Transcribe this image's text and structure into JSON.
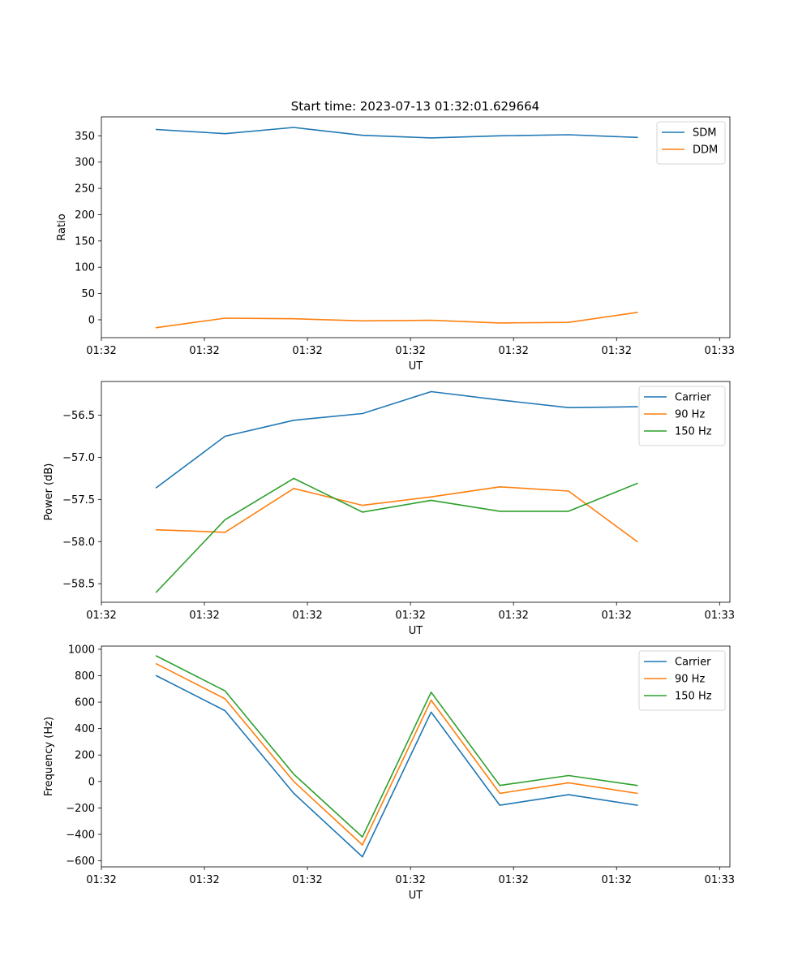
{
  "figure_title": "Start time: 2023-07-13 01:32:01.629664",
  "colors": {
    "blue": "#1f77b4",
    "orange": "#ff7f0e",
    "green": "#2ca02c"
  },
  "chart_data": [
    {
      "type": "line",
      "title": "Start time: 2023-07-13 01:32:01.629664",
      "xlabel": "UT",
      "ylabel": "Ratio",
      "x": [
        1,
        2,
        3,
        4,
        5,
        6,
        7,
        8
      ],
      "xlim": [
        0.2,
        9.35
      ],
      "x_ticks": [
        0.2,
        1.7,
        3.2,
        4.7,
        6.2,
        7.7,
        9.2
      ],
      "x_tick_labels": [
        "01:32",
        "01:32",
        "01:32",
        "01:32",
        "01:32",
        "01:32",
        "01:33"
      ],
      "ylim": [
        -34.0,
        386.0
      ],
      "y_ticks": [
        0,
        50,
        100,
        150,
        200,
        250,
        300,
        350
      ],
      "y_tick_labels": [
        "0",
        "50",
        "100",
        "150",
        "200",
        "250",
        "300",
        "350"
      ],
      "legend_position": "top-right",
      "series": [
        {
          "name": "SDM",
          "color": "#1f77b4",
          "values": [
            362,
            354,
            366,
            351,
            346,
            350,
            352,
            347
          ]
        },
        {
          "name": "DDM",
          "color": "#ff7f0e",
          "values": [
            -15,
            3,
            2,
            -2,
            -1,
            -6,
            -5,
            14
          ]
        }
      ]
    },
    {
      "type": "line",
      "xlabel": "UT",
      "ylabel": "Power (dB)",
      "x": [
        1,
        2,
        3,
        4,
        5,
        6,
        7,
        8
      ],
      "xlim": [
        0.2,
        9.35
      ],
      "x_ticks": [
        0.2,
        1.7,
        3.2,
        4.7,
        6.2,
        7.7,
        9.2
      ],
      "x_tick_labels": [
        "01:32",
        "01:32",
        "01:32",
        "01:32",
        "01:32",
        "01:32",
        "01:33"
      ],
      "ylim": [
        -58.72,
        -56.1
      ],
      "y_ticks": [
        -58.5,
        -58.0,
        -57.5,
        -57.0,
        -56.5
      ],
      "y_tick_labels": [
        "−58.5",
        "−58.0",
        "−57.5",
        "−57.0",
        "−56.5"
      ],
      "legend_position": "top-right",
      "series": [
        {
          "name": "Carrier",
          "color": "#1f77b4",
          "values": [
            -57.36,
            -56.75,
            -56.56,
            -56.48,
            -56.22,
            -56.32,
            -56.41,
            -56.4
          ]
        },
        {
          "name": "90 Hz",
          "color": "#ff7f0e",
          "values": [
            -57.86,
            -57.89,
            -57.37,
            -57.57,
            -57.47,
            -57.35,
            -57.4,
            -58.0
          ]
        },
        {
          "name": "150 Hz",
          "color": "#2ca02c",
          "values": [
            -58.6,
            -57.74,
            -57.25,
            -57.65,
            -57.51,
            -57.64,
            -57.64,
            -57.31
          ]
        }
      ]
    },
    {
      "type": "line",
      "xlabel": "UT",
      "ylabel": "Frequency (Hz)",
      "x": [
        1,
        2,
        3,
        4,
        5,
        6,
        7,
        8
      ],
      "xlim": [
        0.2,
        9.35
      ],
      "x_ticks": [
        0.2,
        1.7,
        3.2,
        4.7,
        6.2,
        7.7,
        9.2
      ],
      "x_tick_labels": [
        "01:32",
        "01:32",
        "01:32",
        "01:32",
        "01:32",
        "01:32",
        "01:33"
      ],
      "ylim": [
        -646,
        1024
      ],
      "y_ticks": [
        -600,
        -400,
        -200,
        0,
        200,
        400,
        600,
        800,
        1000
      ],
      "y_tick_labels": [
        "−600",
        "−400",
        "−200",
        "0",
        "200",
        "400",
        "600",
        "800",
        "1000"
      ],
      "legend_position": "top-right",
      "series": [
        {
          "name": "Carrier",
          "color": "#1f77b4",
          "values": [
            800,
            535,
            -90,
            -570,
            525,
            -180,
            -100,
            -180
          ]
        },
        {
          "name": "90 Hz",
          "color": "#ff7f0e",
          "values": [
            890,
            625,
            0,
            -480,
            615,
            -90,
            -10,
            -90
          ]
        },
        {
          "name": "150 Hz",
          "color": "#2ca02c",
          "values": [
            950,
            685,
            55,
            -420,
            675,
            -30,
            45,
            -30
          ]
        }
      ]
    }
  ]
}
